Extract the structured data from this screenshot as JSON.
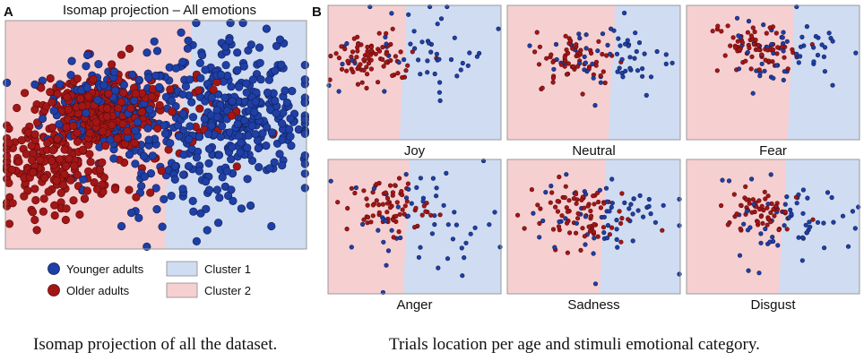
{
  "panel_a": {
    "letter": "A",
    "title": "Isomap projection – All emotions",
    "legend": {
      "younger": "Younger adults",
      "older": "Older adults",
      "cluster1": "Cluster 1",
      "cluster2": "Cluster 2"
    }
  },
  "panel_b": {
    "letter": "B",
    "labels": [
      "Joy",
      "Neutral",
      "Fear",
      "Anger",
      "Sadness",
      "Disgust"
    ]
  },
  "captions": {
    "left": "Isomap projection of all the dataset.",
    "right": "Trials location per age and stimuli emotional category."
  },
  "colors": {
    "younger": "#1f3fa6",
    "older": "#a31616",
    "cluster1": "#cfdcf2",
    "cluster2": "#f6cfd1"
  },
  "chart_data": [
    {
      "type": "scatter",
      "title": "Isomap projection – All emotions",
      "xlabel": "",
      "ylabel": "",
      "xlim": [
        0,
        1
      ],
      "ylim": [
        0,
        1
      ],
      "grid": false,
      "legend": "below",
      "regions": [
        {
          "name": "Cluster 2",
          "side": "left",
          "boundary_x": [
            0.62,
            0.62,
            0.6,
            0.57,
            0.54,
            0.53,
            0.53
          ],
          "boundary_y": [
            1.0,
            0.86,
            0.7,
            0.56,
            0.4,
            0.2,
            0.0
          ]
        },
        {
          "name": "Cluster 1",
          "side": "right"
        }
      ],
      "series": [
        {
          "name": "Younger adults",
          "n_points": 600,
          "clusters": [
            {
              "cx": 0.35,
              "cy": 0.62,
              "spread": 0.11,
              "n": 180
            },
            {
              "cx": 0.8,
              "cy": 0.55,
              "spread": 0.13,
              "n": 220
            },
            {
              "cx": 0.7,
              "cy": 0.72,
              "spread": 0.15,
              "n": 120
            },
            {
              "cx": 0.55,
              "cy": 0.3,
              "spread": 0.14,
              "n": 80
            }
          ]
        },
        {
          "name": "Older adults",
          "n_points": 600,
          "clusters": [
            {
              "cx": 0.3,
              "cy": 0.6,
              "spread": 0.09,
              "n": 320
            },
            {
              "cx": 0.15,
              "cy": 0.35,
              "spread": 0.1,
              "n": 180
            },
            {
              "cx": 0.45,
              "cy": 0.55,
              "spread": 0.16,
              "n": 100
            }
          ]
        }
      ]
    },
    {
      "type": "scatter",
      "title": "Joy",
      "boundary_x": 0.43,
      "series": [
        {
          "name": "Younger adults",
          "n_points": 50,
          "clusters": [
            {
              "cx": 0.55,
              "cy": 0.62,
              "spread": 0.22,
              "n": 50
            }
          ]
        },
        {
          "name": "Older adults",
          "n_points": 80,
          "clusters": [
            {
              "cx": 0.25,
              "cy": 0.6,
              "spread": 0.12,
              "n": 80
            }
          ]
        }
      ]
    },
    {
      "type": "scatter",
      "title": "Neutral",
      "boundary_x": 0.6,
      "series": [
        {
          "name": "Younger adults",
          "n_points": 60,
          "clusters": [
            {
              "cx": 0.6,
              "cy": 0.62,
              "spread": 0.18,
              "n": 60
            }
          ]
        },
        {
          "name": "Older adults",
          "n_points": 60,
          "clusters": [
            {
              "cx": 0.4,
              "cy": 0.6,
              "spread": 0.12,
              "n": 60
            }
          ]
        }
      ]
    },
    {
      "type": "scatter",
      "title": "Fear",
      "boundary_x": 0.6,
      "series": [
        {
          "name": "Younger adults",
          "n_points": 60,
          "clusters": [
            {
              "cx": 0.62,
              "cy": 0.66,
              "spread": 0.2,
              "n": 60
            }
          ]
        },
        {
          "name": "Older adults",
          "n_points": 70,
          "clusters": [
            {
              "cx": 0.4,
              "cy": 0.68,
              "spread": 0.13,
              "n": 70
            }
          ]
        }
      ]
    },
    {
      "type": "scatter",
      "title": "Anger",
      "boundary_x": 0.45,
      "series": [
        {
          "name": "Younger adults",
          "n_points": 55,
          "clusters": [
            {
              "cx": 0.55,
              "cy": 0.55,
              "spread": 0.22,
              "n": 55
            }
          ]
        },
        {
          "name": "Older adults",
          "n_points": 70,
          "clusters": [
            {
              "cx": 0.35,
              "cy": 0.65,
              "spread": 0.12,
              "n": 70
            }
          ]
        }
      ]
    },
    {
      "type": "scatter",
      "title": "Sadness",
      "boundary_x": 0.55,
      "series": [
        {
          "name": "Younger adults",
          "n_points": 60,
          "clusters": [
            {
              "cx": 0.55,
              "cy": 0.58,
              "spread": 0.2,
              "n": 60
            }
          ]
        },
        {
          "name": "Older adults",
          "n_points": 80,
          "clusters": [
            {
              "cx": 0.4,
              "cy": 0.6,
              "spread": 0.15,
              "n": 80
            }
          ]
        }
      ]
    },
    {
      "type": "scatter",
      "title": "Disgust",
      "boundary_x": 0.55,
      "series": [
        {
          "name": "Younger adults",
          "n_points": 60,
          "clusters": [
            {
              "cx": 0.58,
              "cy": 0.55,
              "spread": 0.18,
              "n": 60
            }
          ]
        },
        {
          "name": "Older adults",
          "n_points": 60,
          "clusters": [
            {
              "cx": 0.4,
              "cy": 0.6,
              "spread": 0.1,
              "n": 60
            }
          ]
        }
      ]
    }
  ]
}
